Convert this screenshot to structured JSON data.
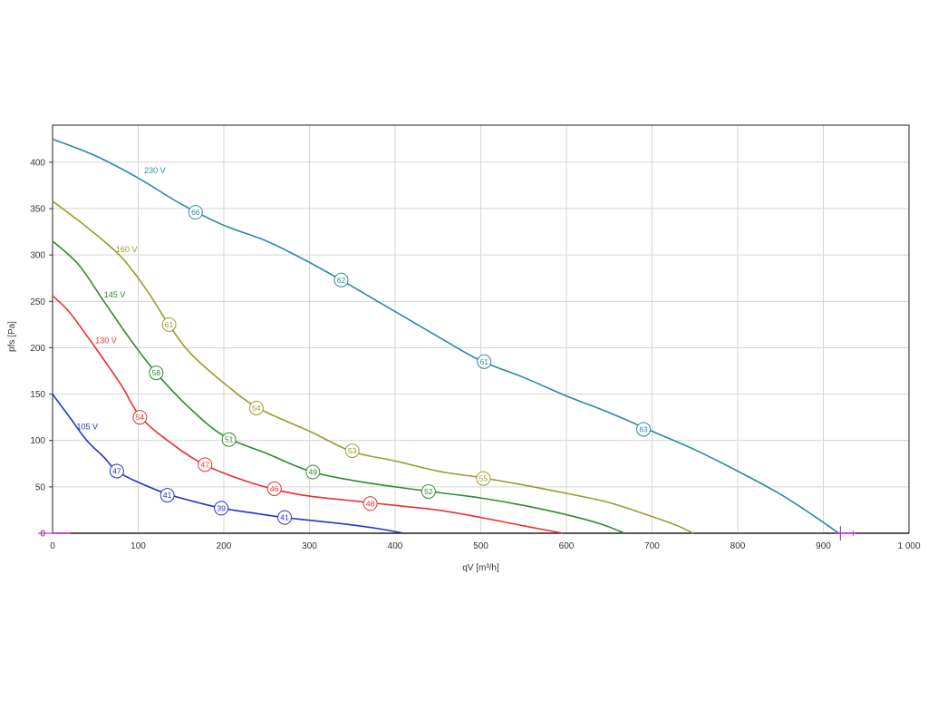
{
  "chart_data": {
    "type": "line",
    "title": "",
    "xlabel": "qV [m³/h]",
    "ylabel": "pfs [Pa]",
    "xlim": [
      0,
      1000
    ],
    "ylim": [
      0,
      440
    ],
    "grid": true,
    "x_ticks": [
      0,
      100,
      200,
      300,
      400,
      500,
      600,
      700,
      800,
      900,
      1000
    ],
    "x_tick_labels": [
      "0",
      "100",
      "200",
      "300",
      "400",
      "500",
      "600",
      "700",
      "800",
      "900",
      "1 000"
    ],
    "y_ticks": [
      0,
      50,
      100,
      150,
      200,
      250,
      300,
      350,
      400
    ],
    "y_tick_labels": [
      "0",
      "50",
      "100",
      "150",
      "200",
      "250",
      "300",
      "350",
      "400"
    ],
    "series": [
      {
        "name": "230 V",
        "color": "#2A8A9E",
        "points": [
          [
            0,
            425
          ],
          [
            50,
            407
          ],
          [
            100,
            383
          ],
          [
            150,
            355
          ],
          [
            200,
            332
          ],
          [
            250,
            315
          ],
          [
            300,
            292
          ],
          [
            350,
            266
          ],
          [
            400,
            239
          ],
          [
            450,
            212
          ],
          [
            500,
            186
          ],
          [
            550,
            168
          ],
          [
            600,
            148
          ],
          [
            650,
            130
          ],
          [
            700,
            110
          ],
          [
            750,
            90
          ],
          [
            800,
            67
          ],
          [
            850,
            42
          ],
          [
            890,
            18
          ],
          [
            918,
            0
          ]
        ],
        "markers": [
          {
            "x": 167,
            "y": 346,
            "label": "66"
          },
          {
            "x": 337,
            "y": 273,
            "label": "62"
          },
          {
            "x": 504,
            "y": 185,
            "label": "61"
          },
          {
            "x": 690,
            "y": 112,
            "label": "63"
          }
        ],
        "label_pos": {
          "x": 107,
          "y": 388
        }
      },
      {
        "name": "160 V",
        "color": "#9A9A2A",
        "points": [
          [
            0,
            358
          ],
          [
            40,
            330
          ],
          [
            80,
            298
          ],
          [
            110,
            262
          ],
          [
            135,
            226
          ],
          [
            160,
            195
          ],
          [
            200,
            162
          ],
          [
            240,
            135
          ],
          [
            300,
            110
          ],
          [
            350,
            88
          ],
          [
            400,
            78
          ],
          [
            450,
            67
          ],
          [
            500,
            60
          ],
          [
            550,
            52
          ],
          [
            600,
            43
          ],
          [
            650,
            33
          ],
          [
            700,
            18
          ],
          [
            730,
            8
          ],
          [
            748,
            0
          ]
        ],
        "markers": [
          {
            "x": 136,
            "y": 225,
            "label": "61"
          },
          {
            "x": 238,
            "y": 135,
            "label": "54"
          },
          {
            "x": 350,
            "y": 89,
            "label": "53"
          },
          {
            "x": 503,
            "y": 59,
            "label": "55"
          }
        ],
        "label_pos": {
          "x": 74,
          "y": 303
        }
      },
      {
        "name": "145 V",
        "color": "#2E8B2E",
        "points": [
          [
            0,
            315
          ],
          [
            30,
            290
          ],
          [
            60,
            250
          ],
          [
            90,
            210
          ],
          [
            120,
            174
          ],
          [
            160,
            135
          ],
          [
            200,
            105
          ],
          [
            250,
            86
          ],
          [
            300,
            67
          ],
          [
            350,
            57
          ],
          [
            400,
            50
          ],
          [
            450,
            44
          ],
          [
            500,
            38
          ],
          [
            550,
            30
          ],
          [
            600,
            20
          ],
          [
            640,
            10
          ],
          [
            668,
            0
          ]
        ],
        "markers": [
          {
            "x": 121,
            "y": 173,
            "label": "58"
          },
          {
            "x": 206,
            "y": 101,
            "label": "51"
          },
          {
            "x": 304,
            "y": 66,
            "label": "49"
          },
          {
            "x": 439,
            "y": 45,
            "label": "52"
          }
        ],
        "label_pos": {
          "x": 60,
          "y": 254
        }
      },
      {
        "name": "130 V",
        "color": "#E8302E",
        "points": [
          [
            0,
            256
          ],
          [
            20,
            238
          ],
          [
            50,
            200
          ],
          [
            80,
            160
          ],
          [
            103,
            125
          ],
          [
            140,
            96
          ],
          [
            177,
            74
          ],
          [
            220,
            58
          ],
          [
            260,
            47
          ],
          [
            300,
            40
          ],
          [
            350,
            35
          ],
          [
            400,
            30
          ],
          [
            450,
            25
          ],
          [
            500,
            17
          ],
          [
            550,
            8
          ],
          [
            596,
            0
          ]
        ],
        "markers": [
          {
            "x": 102,
            "y": 125,
            "label": "54"
          },
          {
            "x": 178,
            "y": 74,
            "label": "47"
          },
          {
            "x": 259,
            "y": 48,
            "label": "46"
          },
          {
            "x": 371,
            "y": 32,
            "label": "48"
          }
        ],
        "label_pos": {
          "x": 50,
          "y": 205
        }
      },
      {
        "name": "105 V",
        "color": "#2233CC",
        "points": [
          [
            0,
            150
          ],
          [
            20,
            125
          ],
          [
            40,
            100
          ],
          [
            60,
            82
          ],
          [
            75,
            67
          ],
          [
            100,
            55
          ],
          [
            135,
            42
          ],
          [
            170,
            33
          ],
          [
            198,
            27
          ],
          [
            240,
            21
          ],
          [
            270,
            17
          ],
          [
            300,
            14
          ],
          [
            340,
            10
          ],
          [
            380,
            5
          ],
          [
            410,
            0
          ]
        ],
        "markers": [
          {
            "x": 75,
            "y": 67,
            "label": "47"
          },
          {
            "x": 134,
            "y": 41,
            "label": "41"
          },
          {
            "x": 197,
            "y": 27,
            "label": "39"
          },
          {
            "x": 271,
            "y": 17,
            "label": "41"
          }
        ],
        "label_pos": {
          "x": 28,
          "y": 112
        }
      }
    ],
    "axis_markers": [
      {
        "x": 920,
        "color": "#CC33CC"
      }
    ]
  }
}
